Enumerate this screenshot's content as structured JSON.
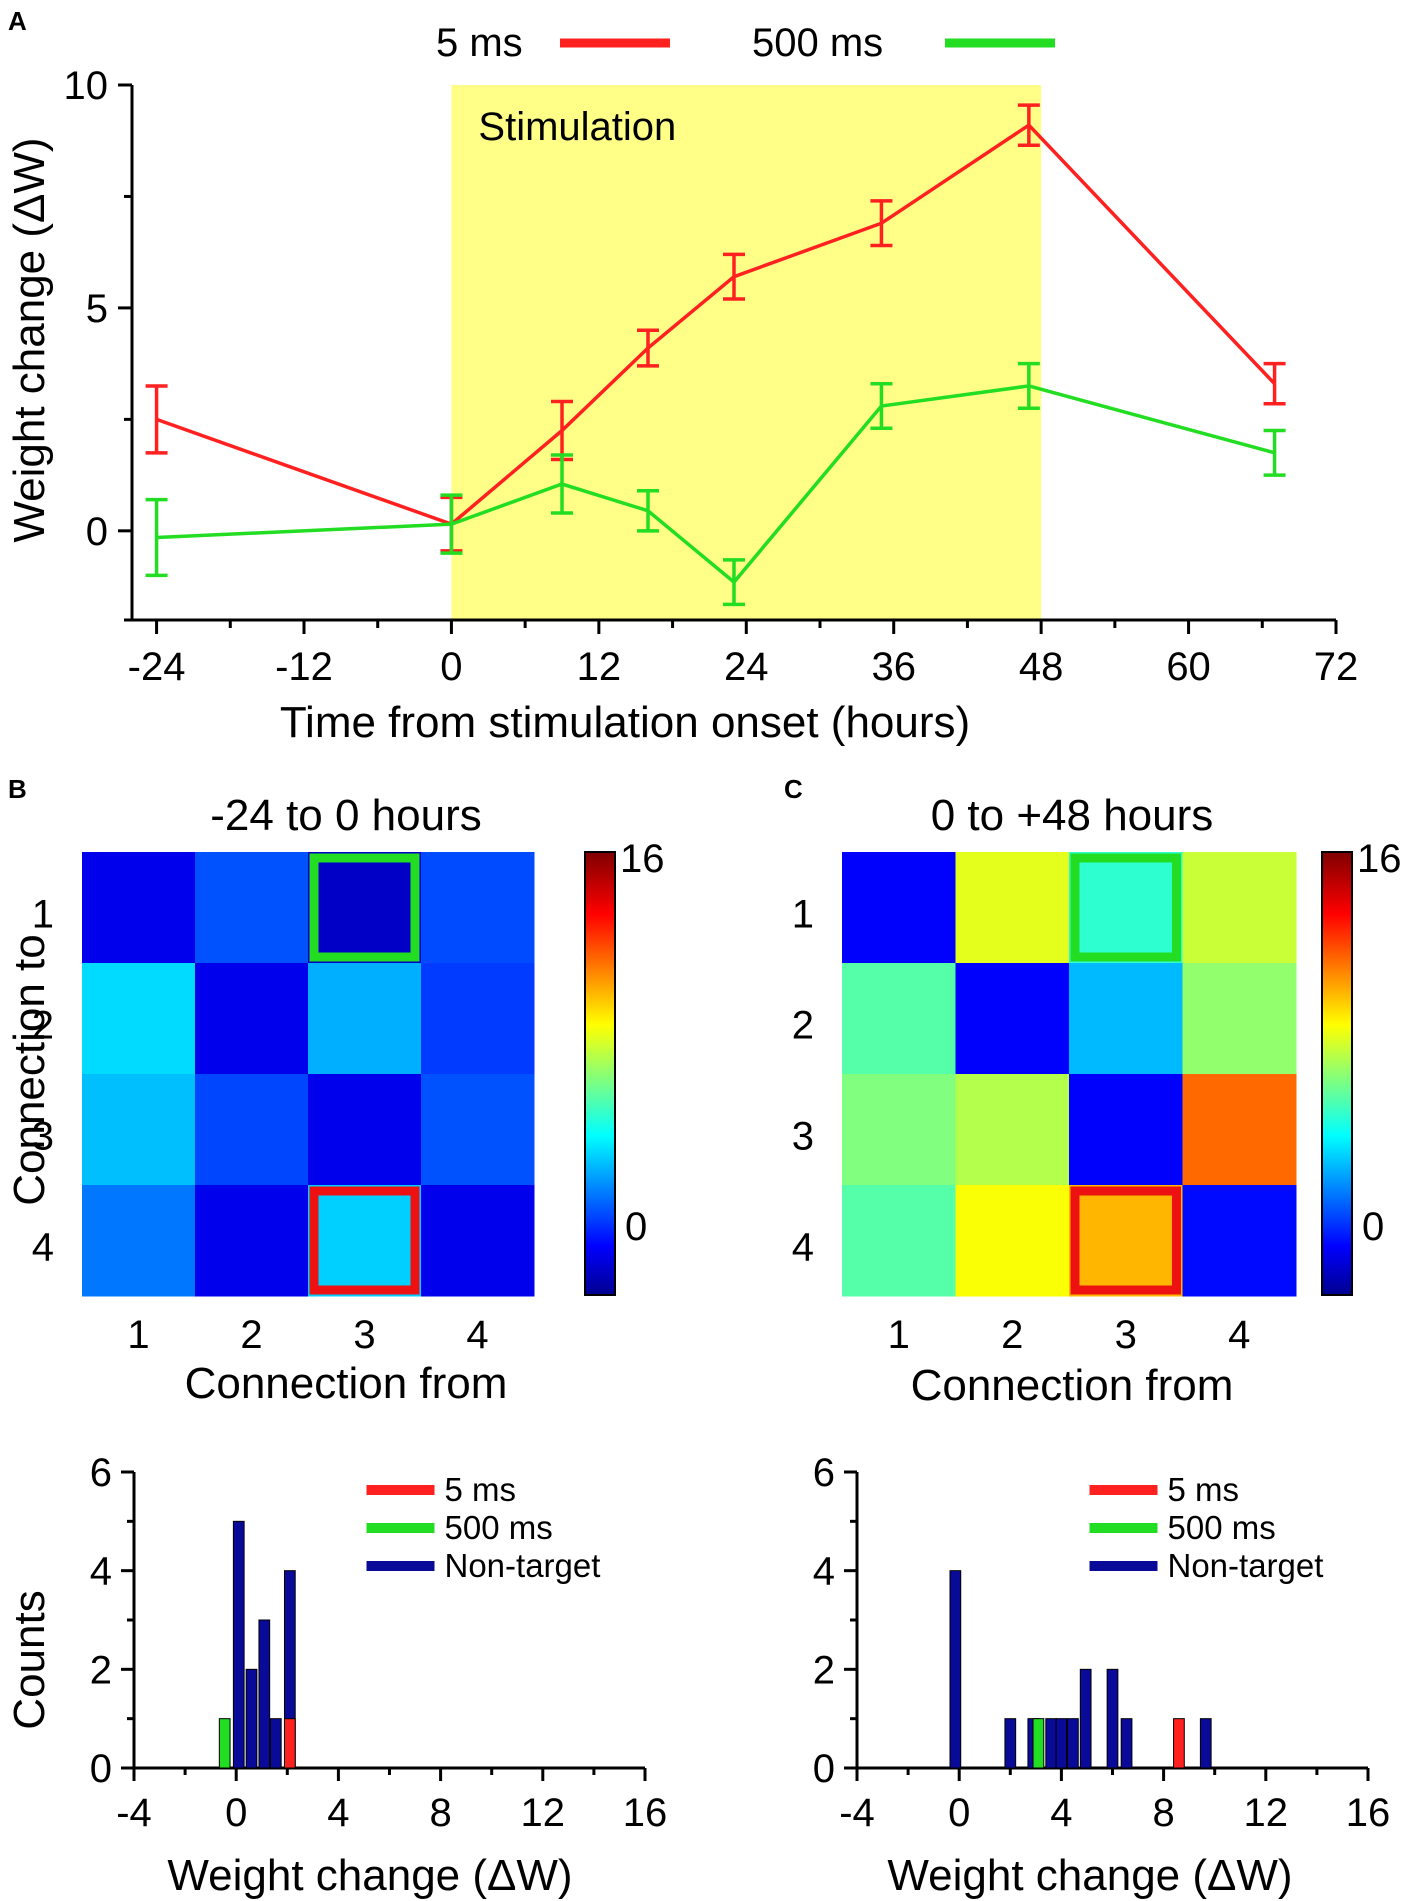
{
  "chart_data": [
    {
      "id": "A",
      "type": "line",
      "panel_label": "A",
      "xlabel": "Time from stimulation onset (hours)",
      "ylabel": "Weight change (ΔW)",
      "xlim": [
        -26,
        72
      ],
      "ylim": [
        -2,
        10
      ],
      "xticks": [
        -24,
        -12,
        0,
        12,
        24,
        36,
        48,
        60,
        72
      ],
      "yticks": [
        0,
        5,
        10
      ],
      "shaded_region": {
        "x0": 0,
        "x1": 48,
        "label": "Stimulation",
        "color": "#ffff88"
      },
      "series": [
        {
          "name": "5 ms",
          "color": "#ff2020",
          "x": [
            -24,
            0,
            9,
            16,
            23,
            35,
            47,
            67
          ],
          "y": [
            2.5,
            0.15,
            2.25,
            4.1,
            5.7,
            6.9,
            9.1,
            3.3
          ],
          "err": [
            0.75,
            0.6,
            0.65,
            0.4,
            0.5,
            0.5,
            0.45,
            0.45
          ]
        },
        {
          "name": "500 ms",
          "color": "#22dd22",
          "x": [
            -24,
            0,
            9,
            16,
            23,
            35,
            47,
            67
          ],
          "y": [
            -0.15,
            0.15,
            1.05,
            0.45,
            -1.15,
            2.8,
            3.25,
            1.75
          ],
          "err": [
            0.85,
            0.65,
            0.65,
            0.45,
            0.5,
            0.5,
            0.5,
            0.5
          ]
        }
      ]
    },
    {
      "id": "B",
      "type": "heatmap",
      "panel_label": "B",
      "title": "-24 to 0 hours",
      "xlabel": "Connection from",
      "ylabel": "Connection to",
      "xticks": [
        "1",
        "2",
        "3",
        "4"
      ],
      "yticks": [
        "1",
        "2",
        "3",
        "4"
      ],
      "colorbar_ticks": [
        "16",
        "0"
      ],
      "colorbar_range": [
        -2.5,
        16
      ],
      "values": [
        [
          -0.8,
          1.0,
          -1.5,
          0.9
        ],
        [
          3.5,
          -0.8,
          2.7,
          0.6
        ],
        [
          3.0,
          0.8,
          -0.8,
          1.0
        ],
        [
          1.7,
          -0.8,
          3.3,
          -0.8
        ]
      ],
      "highlights": [
        {
          "row": 0,
          "col": 2,
          "color": "#22dd22"
        },
        {
          "row": 3,
          "col": 2,
          "color": "#ee1111"
        }
      ]
    },
    {
      "id": "C",
      "type": "heatmap",
      "panel_label": "C",
      "title": "0 to +48 hours",
      "xlabel": "Connection from",
      "ylabel": "Connection to",
      "xticks": [
        "1",
        "2",
        "3",
        "4"
      ],
      "yticks": [
        "1",
        "2",
        "3",
        "4"
      ],
      "colorbar_ticks": [
        "16",
        "0"
      ],
      "colorbar_range": [
        -2.5,
        16
      ],
      "values": [
        [
          -0.5,
          8.3,
          5.0,
          7.8
        ],
        [
          5.7,
          -0.5,
          2.9,
          6.8
        ],
        [
          6.5,
          7.4,
          -0.5,
          11.5
        ],
        [
          5.7,
          8.7,
          10.1,
          -0.3
        ]
      ],
      "highlights": [
        {
          "row": 0,
          "col": 2,
          "color": "#22dd22"
        },
        {
          "row": 3,
          "col": 2,
          "color": "#ee1111"
        }
      ]
    },
    {
      "id": "D",
      "type": "bar",
      "xlabel": "Weight change (ΔW)",
      "ylabel": "Counts",
      "xlim": [
        -4,
        16
      ],
      "ylim": [
        0,
        6
      ],
      "xticks": [
        -4,
        0,
        4,
        8,
        12,
        16
      ],
      "yticks": [
        0,
        2,
        4,
        6
      ],
      "legend": [
        {
          "name": "5 ms",
          "color": "#ff2020"
        },
        {
          "name": "500 ms",
          "color": "#22dd22"
        },
        {
          "name": "Non-target",
          "color": "#0a0a99"
        }
      ],
      "bars": [
        {
          "x": -0.45,
          "count": 1,
          "kind": "500 ms"
        },
        {
          "x": 0.1,
          "count": 5,
          "kind": "Non-target"
        },
        {
          "x": 0.6,
          "count": 2,
          "kind": "Non-target"
        },
        {
          "x": 1.1,
          "count": 3,
          "kind": "Non-target"
        },
        {
          "x": 1.55,
          "count": 1,
          "kind": "Non-target"
        },
        {
          "x": 2.1,
          "count": 4,
          "kind": "Non-target"
        },
        {
          "x": 2.1,
          "count": 1,
          "kind": "5 ms"
        }
      ]
    },
    {
      "id": "E",
      "type": "bar",
      "xlabel": "Weight change (ΔW)",
      "ylabel": "",
      "xlim": [
        -4,
        16
      ],
      "ylim": [
        0,
        6
      ],
      "xticks": [
        -4,
        0,
        4,
        8,
        12,
        16
      ],
      "yticks": [
        0,
        2,
        4,
        6
      ],
      "legend": [
        {
          "name": "5 ms",
          "color": "#ff2020"
        },
        {
          "name": "500 ms",
          "color": "#22dd22"
        },
        {
          "name": "Non-target",
          "color": "#0a0a99"
        }
      ],
      "bars": [
        {
          "x": -0.15,
          "count": 4,
          "kind": "Non-target"
        },
        {
          "x": 2.0,
          "count": 1,
          "kind": "Non-target"
        },
        {
          "x": 2.9,
          "count": 1,
          "kind": "Non-target"
        },
        {
          "x": 3.1,
          "count": 1,
          "kind": "500 ms"
        },
        {
          "x": 3.6,
          "count": 1,
          "kind": "Non-target"
        },
        {
          "x": 4.0,
          "count": 1,
          "kind": "Non-target"
        },
        {
          "x": 4.45,
          "count": 1,
          "kind": "Non-target"
        },
        {
          "x": 4.95,
          "count": 2,
          "kind": "Non-target"
        },
        {
          "x": 6.0,
          "count": 2,
          "kind": "Non-target"
        },
        {
          "x": 6.55,
          "count": 1,
          "kind": "Non-target"
        },
        {
          "x": 8.6,
          "count": 1,
          "kind": "5 ms"
        },
        {
          "x": 9.65,
          "count": 1,
          "kind": "Non-target"
        }
      ]
    }
  ]
}
